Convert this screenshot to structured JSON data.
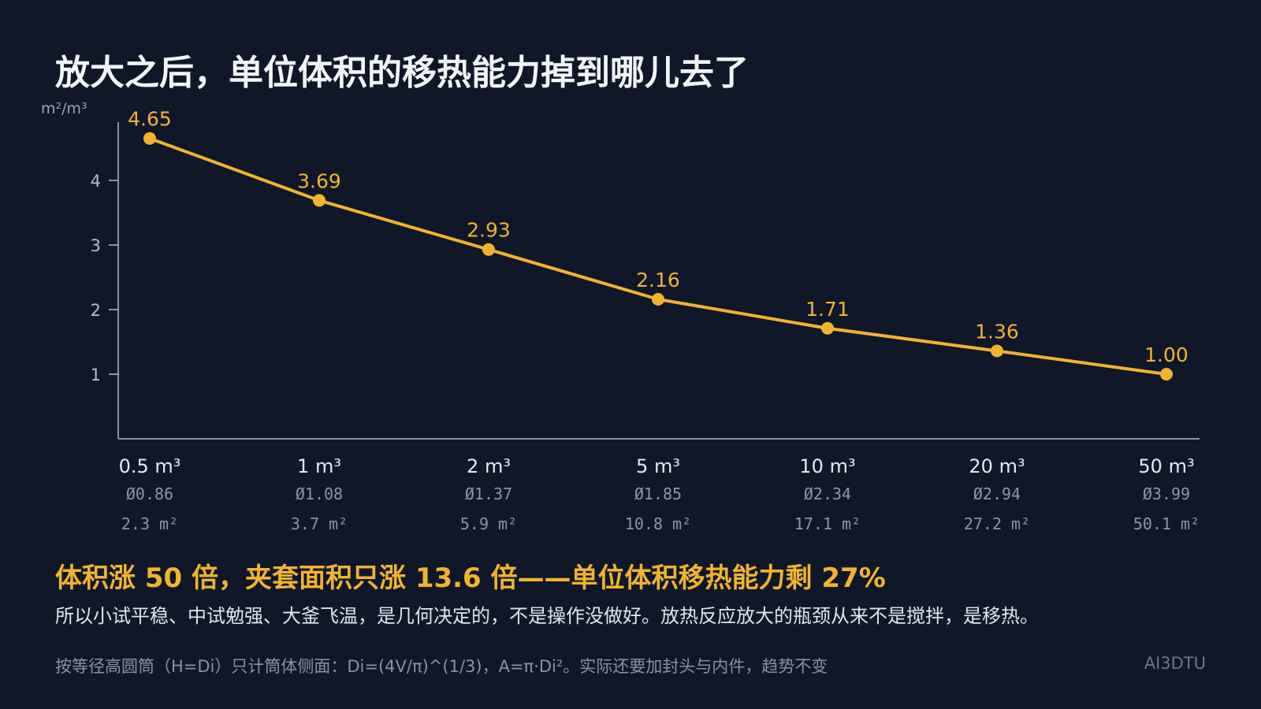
{
  "title": "放大之后，单位体积的移热能力掉到哪儿去了",
  "chart_data": {
    "type": "line",
    "y_unit": "m²/m³",
    "categories": [
      "0.5 m³",
      "1 m³",
      "2 m³",
      "5 m³",
      "10 m³",
      "20 m³",
      "50 m³"
    ],
    "diameters": [
      "Ø0.86",
      "Ø1.08",
      "Ø1.37",
      "Ø1.85",
      "Ø2.34",
      "Ø2.94",
      "Ø3.99"
    ],
    "areas": [
      "2.3 m²",
      "3.7 m²",
      "5.9 m²",
      "10.8 m²",
      "17.1 m²",
      "27.2 m²",
      "50.1 m²"
    ],
    "values": [
      4.65,
      3.69,
      2.93,
      2.16,
      1.71,
      1.36,
      1.0
    ],
    "value_labels": [
      "4.65",
      "3.69",
      "2.93",
      "2.16",
      "1.71",
      "1.36",
      "1.00"
    ],
    "yticks": [
      1,
      2,
      3,
      4
    ],
    "ylim": [
      0,
      4.9
    ],
    "grid": false,
    "line_color": "#f3b32f"
  },
  "headline": "体积涨 50 倍，夹套面积只涨 13.6 倍——单位体积移热能力剩 27%",
  "body": "所以小试平稳、中试勉强、大釜飞温，是几何决定的，不是操作没做好。放热反应放大的瓶颈从来不是搅拌，是移热。",
  "footnote": "按等径高圆筒（H=Di）只计筒体侧面：Di=(4V/π)^(1/3)，A=π·Di²。实际还要加封头与内件，趋势不变",
  "brand": "AI3DTU"
}
